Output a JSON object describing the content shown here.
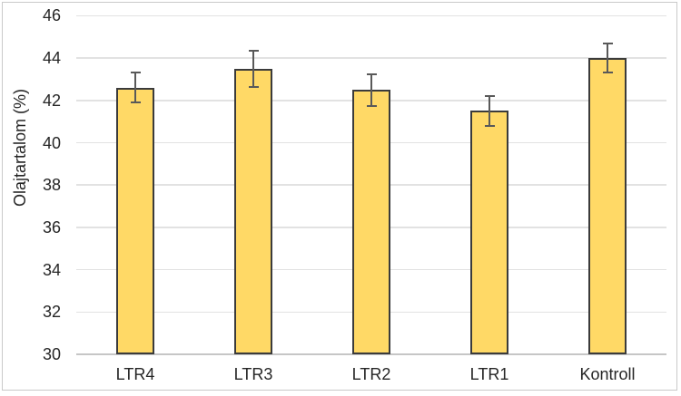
{
  "chart_data": {
    "type": "bar",
    "categories": [
      "LTR4",
      "LTR3",
      "LTR2",
      "LTR1",
      "Kontroll"
    ],
    "values": [
      42.6,
      43.5,
      42.5,
      41.5,
      44.0
    ],
    "error_bars": [
      0.7,
      0.85,
      0.75,
      0.7,
      0.7
    ],
    "title": "",
    "xlabel": "",
    "ylabel": "Olajtartalom (%)",
    "ylim": [
      30,
      46
    ],
    "yticks": [
      30,
      32,
      34,
      36,
      38,
      40,
      42,
      44,
      46
    ],
    "grid": true,
    "legend_position": "none"
  },
  "colors": {
    "bar_fill": "#FFD966",
    "bar_border": "#3B3B3B",
    "error_bar": "#595959",
    "gridline": "#E2E2E2",
    "axis_line": "#C6C6C6",
    "text": "#262626",
    "frame_border": "#C9C9C9",
    "background": "#FFFFFF"
  }
}
